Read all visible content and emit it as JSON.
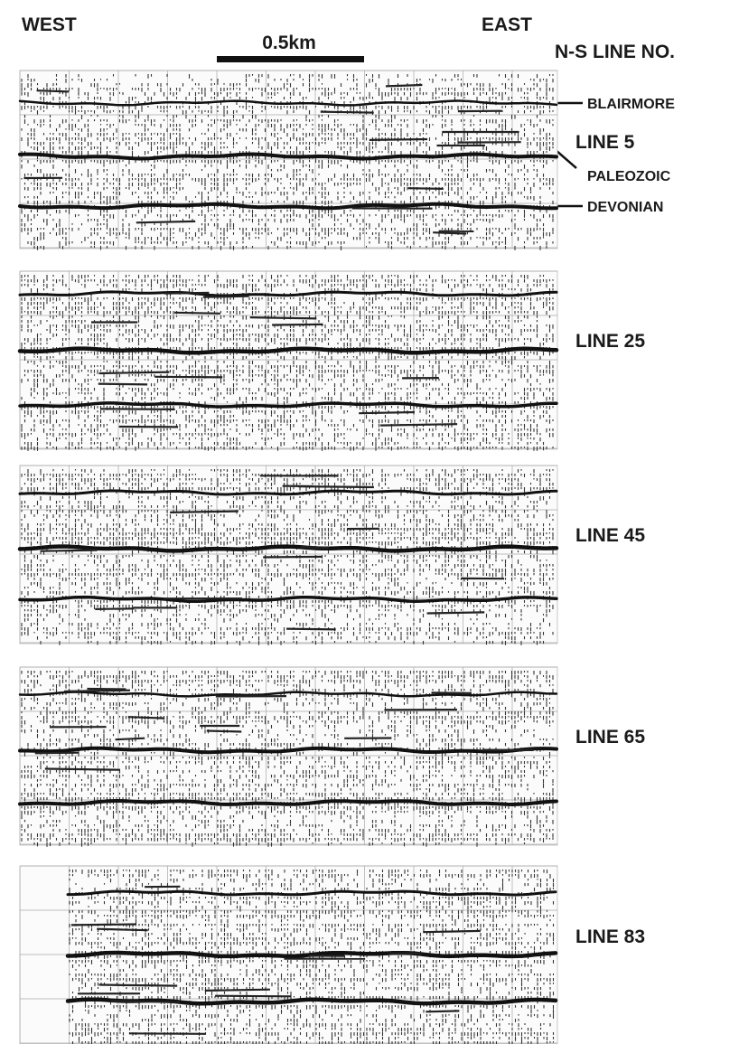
{
  "header": {
    "west": "WEST",
    "east": "EAST",
    "scale": "0.5km",
    "column_title": "N-S LINE NO."
  },
  "horizons": [
    {
      "label": "BLAIRMORE"
    },
    {
      "label": "PALEOZOIC"
    },
    {
      "label": "DEVONIAN"
    }
  ],
  "panels": [
    {
      "label": "LINE 5"
    },
    {
      "label": "LINE 25"
    },
    {
      "label": "LINE 45"
    },
    {
      "label": "LINE 65"
    },
    {
      "label": "LINE 83"
    }
  ]
}
